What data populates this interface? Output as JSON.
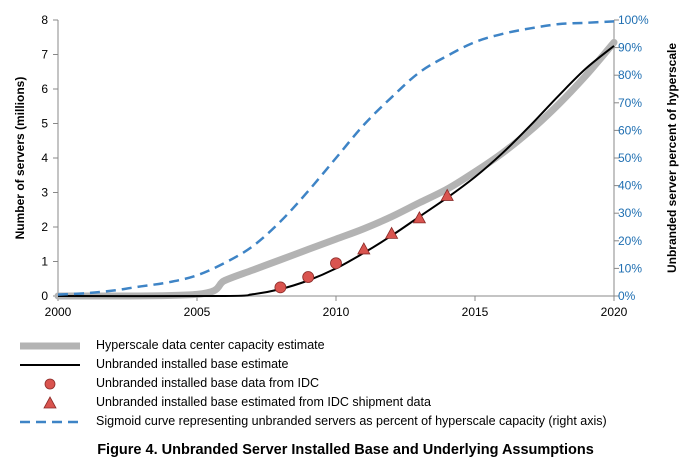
{
  "chart_data": {
    "type": "line",
    "title": "",
    "xlabel": "",
    "ylabel": "Number of servers (millions)",
    "ylabel_right": "Unbranded server percent of hyperscale",
    "xlim": [
      2000,
      2020
    ],
    "ylim": [
      0,
      8
    ],
    "ylim_right": [
      0,
      100
    ],
    "x_ticks": [
      "2000",
      "2005",
      "2010",
      "2015",
      "2020"
    ],
    "y_ticks": [
      "0",
      "1",
      "2",
      "3",
      "4",
      "5",
      "6",
      "7",
      "8"
    ],
    "y_ticks_right": [
      "0%",
      "10%",
      "20%",
      "30%",
      "40%",
      "50%",
      "60%",
      "70%",
      "80%",
      "90%",
      "100%"
    ],
    "grid": false,
    "series": [
      {
        "name": "Hyperscale data center capacity estimate",
        "style": "thick-line",
        "color": "#b3b3b3",
        "axis": "left",
        "x": [
          2000,
          2005,
          2006,
          2007,
          2008,
          2009,
          2010,
          2011,
          2012,
          2013,
          2014,
          2015,
          2016,
          2017,
          2018,
          2019,
          2020
        ],
        "y": [
          0.0,
          0.05,
          0.45,
          0.75,
          1.05,
          1.35,
          1.65,
          1.95,
          2.3,
          2.7,
          3.1,
          3.6,
          4.15,
          4.8,
          5.55,
          6.4,
          7.35
        ]
      },
      {
        "name": "Unbranded installed base estimate",
        "style": "line",
        "color": "#000000",
        "axis": "left",
        "x": [
          2000,
          2006,
          2007,
          2008,
          2009,
          2010,
          2011,
          2012,
          2013,
          2014,
          2015,
          2016,
          2017,
          2018,
          2019,
          2020
        ],
        "y": [
          0.0,
          0.0,
          0.05,
          0.2,
          0.45,
          0.8,
          1.25,
          1.75,
          2.3,
          2.85,
          3.45,
          4.15,
          4.95,
          5.8,
          6.6,
          7.25
        ]
      },
      {
        "name": "Unbranded installed base data from IDC",
        "style": "circle-markers",
        "color": "#d9544f",
        "axis": "left",
        "x": [
          2008,
          2009,
          2010
        ],
        "y": [
          0.25,
          0.55,
          0.95
        ]
      },
      {
        "name": "Unbranded installed base estimated from IDC shipment data",
        "style": "triangle-markers",
        "color": "#d9544f",
        "axis": "left",
        "x": [
          2011,
          2012,
          2013,
          2014
        ],
        "y": [
          1.35,
          1.8,
          2.25,
          2.9
        ]
      },
      {
        "name": "Sigmoid curve representing unbranded servers as percent of hyperscale capacity (right axis)",
        "style": "dashed-line",
        "color": "#3e84c6",
        "axis": "right",
        "x": [
          2000,
          2001,
          2002,
          2003,
          2004,
          2005,
          2006,
          2007,
          2008,
          2009,
          2010,
          2011,
          2012,
          2013,
          2014,
          2015,
          2016,
          2017,
          2018,
          2019,
          2020
        ],
        "y": [
          0.5,
          1,
          2,
          3.5,
          5,
          7.5,
          12,
          18,
          27,
          38,
          50,
          62,
          72,
          81,
          87,
          92,
          95,
          97,
          98.5,
          99,
          99.5
        ]
      }
    ]
  },
  "caption": "Figure 4. Unbranded Server Installed Base and Underlying Assumptions"
}
